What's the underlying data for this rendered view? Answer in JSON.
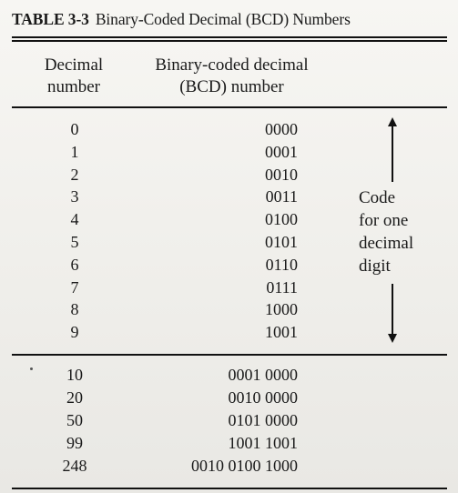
{
  "table": {
    "label": "TABLE 3-3",
    "title": "Binary-Coded Decimal (BCD) Numbers",
    "headers": {
      "decimal": [
        "Decimal",
        "number"
      ],
      "bcd": [
        "Binary-coded decimal",
        "(BCD) number"
      ]
    },
    "rows_single_digit": [
      {
        "decimal": "0",
        "bcd": "0000"
      },
      {
        "decimal": "1",
        "bcd": "0001"
      },
      {
        "decimal": "2",
        "bcd": "0010"
      },
      {
        "decimal": "3",
        "bcd": "0011"
      },
      {
        "decimal": "4",
        "bcd": "0100"
      },
      {
        "decimal": "5",
        "bcd": "0101"
      },
      {
        "decimal": "6",
        "bcd": "0110"
      },
      {
        "decimal": "7",
        "bcd": "0111"
      },
      {
        "decimal": "8",
        "bcd": "1000"
      },
      {
        "decimal": "9",
        "bcd": "1001"
      }
    ],
    "annotation": [
      "Code",
      "for one",
      "decimal",
      "digit"
    ],
    "rows_multi_digit": [
      {
        "decimal": "10",
        "bcd": "0001 0000"
      },
      {
        "decimal": "20",
        "bcd": "0010 0000"
      },
      {
        "decimal": "50",
        "bcd": "0101 0000"
      },
      {
        "decimal": "99",
        "bcd": "1001 1001"
      },
      {
        "decimal": "248",
        "bcd": "0010 0100 1000"
      }
    ]
  }
}
